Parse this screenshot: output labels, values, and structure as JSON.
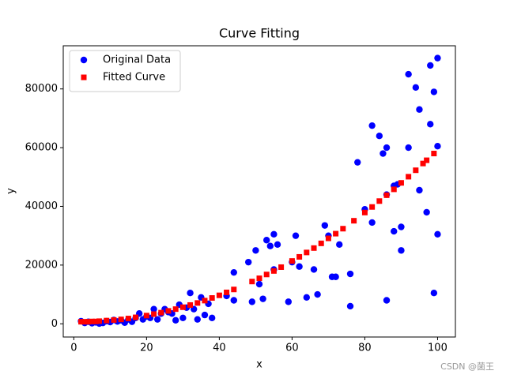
{
  "chart_data": {
    "type": "scatter",
    "title": "Curve Fitting",
    "x_label": "x",
    "y_label": "y",
    "xlim": [
      -2.9,
      104.9
    ],
    "ylim": [
      -4500,
      94700
    ],
    "xticks": [
      0,
      20,
      40,
      60,
      80,
      100
    ],
    "yticks": [
      0,
      20000,
      40000,
      60000,
      80000
    ],
    "grid": false,
    "legend": "upper left",
    "series": [
      {
        "name": "Original Data",
        "color": "#0000ff",
        "marker": "circle",
        "x": [
          2,
          3,
          4,
          5,
          6,
          7,
          8,
          9,
          10,
          11,
          12,
          13,
          14,
          15,
          16,
          17,
          18,
          19,
          20,
          21,
          22,
          23,
          24,
          25,
          26,
          27,
          28,
          29,
          30,
          31,
          32,
          33,
          34,
          35,
          36,
          37,
          38,
          42,
          44,
          44,
          48,
          49,
          50,
          51,
          52,
          53,
          54,
          55,
          55,
          56,
          59,
          60,
          61,
          62,
          64,
          66,
          67,
          69,
          70,
          71,
          72,
          73,
          76,
          76,
          78,
          80,
          82,
          82,
          84,
          85,
          86,
          86,
          86,
          88,
          88,
          89,
          90,
          90,
          92,
          92,
          94,
          95,
          95,
          97,
          98,
          98,
          99,
          99,
          100,
          100,
          100
        ],
        "values": [
          900,
          300,
          700,
          200,
          500,
          100,
          300,
          900,
          600,
          1300,
          800,
          1200,
          400,
          1500,
          700,
          2000,
          3500,
          1500,
          2500,
          2000,
          5000,
          1500,
          3500,
          5000,
          4000,
          3500,
          1200,
          6500,
          2000,
          5500,
          10500,
          5000,
          1500,
          9000,
          3000,
          6800,
          2000,
          9500,
          8000,
          17500,
          21000,
          7500,
          25000,
          13500,
          8500,
          28500,
          26500,
          30500,
          18500,
          27000,
          7500,
          21000,
          30000,
          19500,
          9000,
          18500,
          10000,
          33500,
          30000,
          16000,
          16000,
          27000,
          6000,
          17000,
          55000,
          39000,
          67500,
          34500,
          64000,
          58000,
          60000,
          8000,
          44000,
          31500,
          47000,
          47500,
          33000,
          25000,
          85000,
          60000,
          80500,
          73000,
          45500,
          38000,
          68000,
          88000,
          79000,
          10500,
          90500,
          60500,
          30500
        ]
      },
      {
        "name": "Fitted Curve",
        "color": "#ff0000",
        "marker": "square",
        "x": [
          2,
          3,
          4,
          5,
          6,
          7,
          9,
          11,
          13,
          15,
          17,
          20,
          22,
          24,
          26,
          28,
          30,
          32,
          34,
          36,
          38,
          40,
          42,
          44,
          49,
          51,
          53,
          55,
          57,
          60,
          62,
          64,
          66,
          68,
          70,
          72,
          74,
          77,
          80,
          82,
          84,
          86,
          88,
          90,
          92,
          94,
          96,
          97,
          99
        ],
        "values": [
          700,
          700,
          700,
          800,
          800,
          900,
          1100,
          1300,
          1500,
          1800,
          2200,
          2800,
          3300,
          3800,
          4400,
          5000,
          5650,
          6400,
          7100,
          7900,
          8800,
          9700,
          10700,
          11700,
          14400,
          15500,
          16800,
          18000,
          19300,
          21400,
          22800,
          24300,
          25800,
          27400,
          29100,
          30700,
          32400,
          35100,
          37900,
          39800,
          41800,
          43800,
          45800,
          48000,
          50100,
          52300,
          54600,
          55700,
          58000
        ]
      }
    ]
  },
  "watermark": "CSDN @菌王"
}
